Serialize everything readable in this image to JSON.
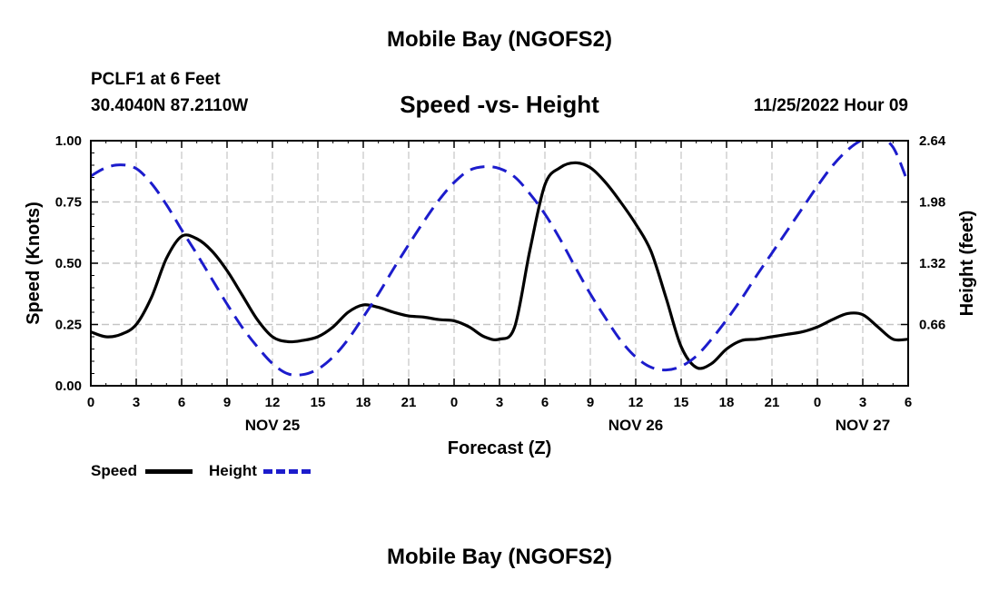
{
  "header": {
    "title": "Mobile Bay (NGOFS2)",
    "station": "PCLF1 at 6 Feet",
    "coords": "30.4040N  87.2110W",
    "subtitle": "Speed -vs- Height",
    "datetime": "11/25/2022 Hour 09"
  },
  "footer": {
    "title": "Mobile Bay (NGOFS2)"
  },
  "legend": {
    "speed_label": "Speed",
    "height_label": "Height"
  },
  "colors": {
    "speed": "#000000",
    "height": "#1c1ccc",
    "grid": "#c4c4c4"
  },
  "chart_data": {
    "type": "line",
    "xlabel": "Forecast (Z)",
    "ylabel_left": "Speed (Knots)",
    "ylabel_right": "Height (feet)",
    "xlim": [
      0,
      54
    ],
    "ylim_left": [
      0,
      1.0
    ],
    "ylim_right": [
      0.0,
      2.64
    ],
    "x_ticks": [
      0,
      3,
      6,
      9,
      12,
      15,
      18,
      21,
      24,
      27,
      30,
      33,
      36,
      39,
      42,
      45,
      48,
      51,
      54
    ],
    "x_tick_labels": [
      "0",
      "3",
      "6",
      "9",
      "12",
      "15",
      "18",
      "21",
      "0",
      "3",
      "6",
      "9",
      "12",
      "15",
      "18",
      "21",
      "0",
      "3",
      "6"
    ],
    "y_left_ticks": [
      0,
      0.25,
      0.5,
      0.75,
      1.0
    ],
    "y_left_tick_labels": [
      "0.00",
      "0.25",
      "0.50",
      "0.75",
      "1.00"
    ],
    "y_right_ticks": [
      0.66,
      1.32,
      1.98,
      2.64
    ],
    "y_right_tick_labels": [
      "0.66",
      "1.32",
      "1.98",
      "2.64"
    ],
    "date_labels": [
      {
        "x": 12,
        "label": "NOV 25"
      },
      {
        "x": 36,
        "label": "NOV 26"
      },
      {
        "x": 51,
        "label": "NOV 27"
      }
    ],
    "grid": true,
    "legend_position": "bottom-left",
    "series": [
      {
        "name": "Speed",
        "axis": "left",
        "style": "solid",
        "x": [
          0,
          1,
          2,
          3,
          4,
          5,
          6,
          7,
          8,
          9,
          10,
          11,
          12,
          13,
          14,
          15,
          16,
          17,
          18,
          19,
          20,
          21,
          22,
          23,
          24,
          25,
          26,
          27,
          28,
          29,
          30,
          31,
          32,
          33,
          34,
          35,
          36,
          37,
          38,
          39,
          40,
          41,
          42,
          43,
          44,
          45,
          46,
          47,
          48,
          49,
          50,
          51,
          52,
          53,
          54
        ],
        "y": [
          0.22,
          0.2,
          0.21,
          0.25,
          0.36,
          0.52,
          0.61,
          0.6,
          0.55,
          0.47,
          0.37,
          0.27,
          0.2,
          0.18,
          0.185,
          0.2,
          0.24,
          0.3,
          0.33,
          0.32,
          0.3,
          0.285,
          0.28,
          0.27,
          0.265,
          0.24,
          0.2,
          0.19,
          0.24,
          0.55,
          0.82,
          0.89,
          0.91,
          0.89,
          0.83,
          0.75,
          0.66,
          0.55,
          0.36,
          0.16,
          0.075,
          0.09,
          0.15,
          0.185,
          0.19,
          0.2,
          0.21,
          0.22,
          0.24,
          0.27,
          0.295,
          0.29,
          0.24,
          0.19,
          0.19
        ]
      },
      {
        "name": "Height",
        "axis": "right",
        "style": "dashed",
        "x": [
          0,
          1,
          2,
          3,
          4,
          5,
          6,
          7,
          8,
          9,
          10,
          11,
          12,
          13,
          14,
          15,
          16,
          17,
          18,
          19,
          20,
          21,
          22,
          23,
          24,
          25,
          26,
          27,
          28,
          29,
          30,
          31,
          32,
          33,
          34,
          35,
          36,
          37,
          38,
          39,
          40,
          41,
          42,
          43,
          44,
          45,
          46,
          47,
          48,
          49,
          50,
          51,
          52,
          53,
          54
        ],
        "y": [
          2.26,
          2.35,
          2.38,
          2.34,
          2.18,
          1.95,
          1.68,
          1.42,
          1.15,
          0.88,
          0.63,
          0.42,
          0.24,
          0.13,
          0.12,
          0.18,
          0.31,
          0.5,
          0.74,
          0.99,
          1.26,
          1.52,
          1.77,
          2.0,
          2.19,
          2.32,
          2.36,
          2.34,
          2.25,
          2.07,
          1.85,
          1.58,
          1.28,
          0.99,
          0.73,
          0.49,
          0.31,
          0.2,
          0.17,
          0.21,
          0.32,
          0.5,
          0.71,
          0.94,
          1.19,
          1.43,
          1.67,
          1.91,
          2.15,
          2.37,
          2.54,
          2.65,
          2.67,
          2.57,
          2.18
        ]
      }
    ]
  }
}
